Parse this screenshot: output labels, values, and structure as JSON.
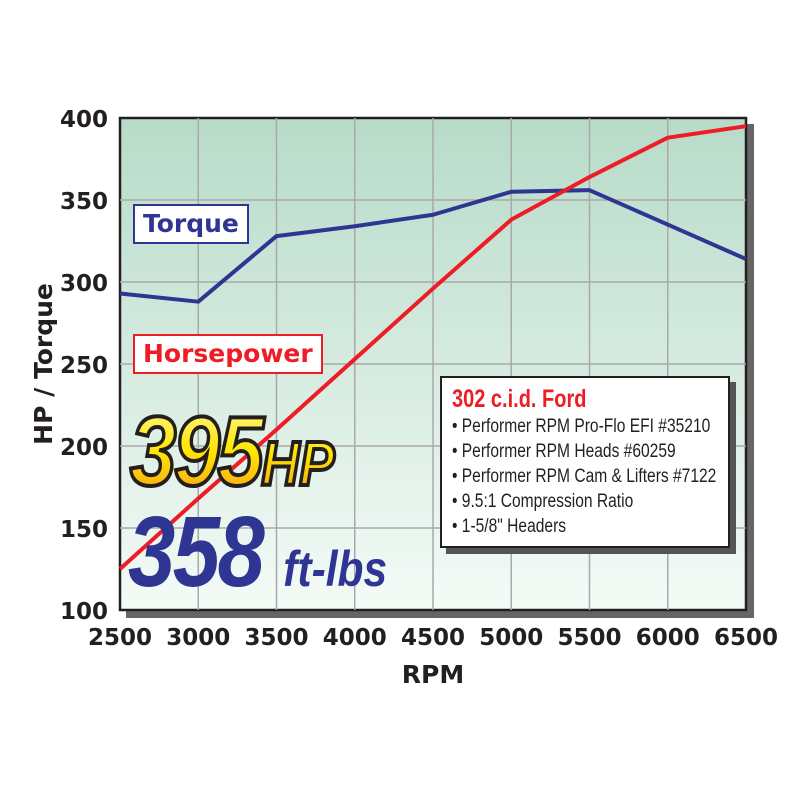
{
  "chart_data": {
    "type": "line",
    "xlabel": "RPM",
    "ylabel": "HP / Torque",
    "xlim": [
      2500,
      6500
    ],
    "ylim": [
      100,
      400
    ],
    "x_ticks": [
      "2500",
      "3000",
      "3500",
      "4000",
      "4500",
      "5000",
      "5500",
      "6000",
      "6500"
    ],
    "y_ticks": [
      "400",
      "350",
      "300",
      "250",
      "200",
      "150",
      "100"
    ],
    "grid": true,
    "x": [
      2500,
      3000,
      3500,
      4000,
      4500,
      5000,
      5500,
      6000,
      6500
    ],
    "series": [
      {
        "name": "Torque",
        "color": "#2e3592",
        "values": [
          293,
          288,
          328,
          334,
          341,
          355,
          356,
          335,
          314
        ]
      },
      {
        "name": "Horsepower",
        "color": "#ee1c25",
        "values": [
          125,
          168,
          210,
          253,
          296,
          338,
          364,
          388,
          395
        ]
      }
    ]
  },
  "headline": {
    "hp_value": "395",
    "hp_unit": "HP",
    "torque_value": "358",
    "torque_unit": "ft-lbs"
  },
  "spec_box": {
    "title": "302 c.i.d. Ford",
    "items": [
      "• Performer RPM Pro-Flo EFI #35210",
      "• Performer RPM Heads #60259",
      "• Performer RPM Cam & Lifters #7122",
      "• 9.5:1 Compression Ratio",
      "• 1-5/8\" Headers"
    ]
  }
}
